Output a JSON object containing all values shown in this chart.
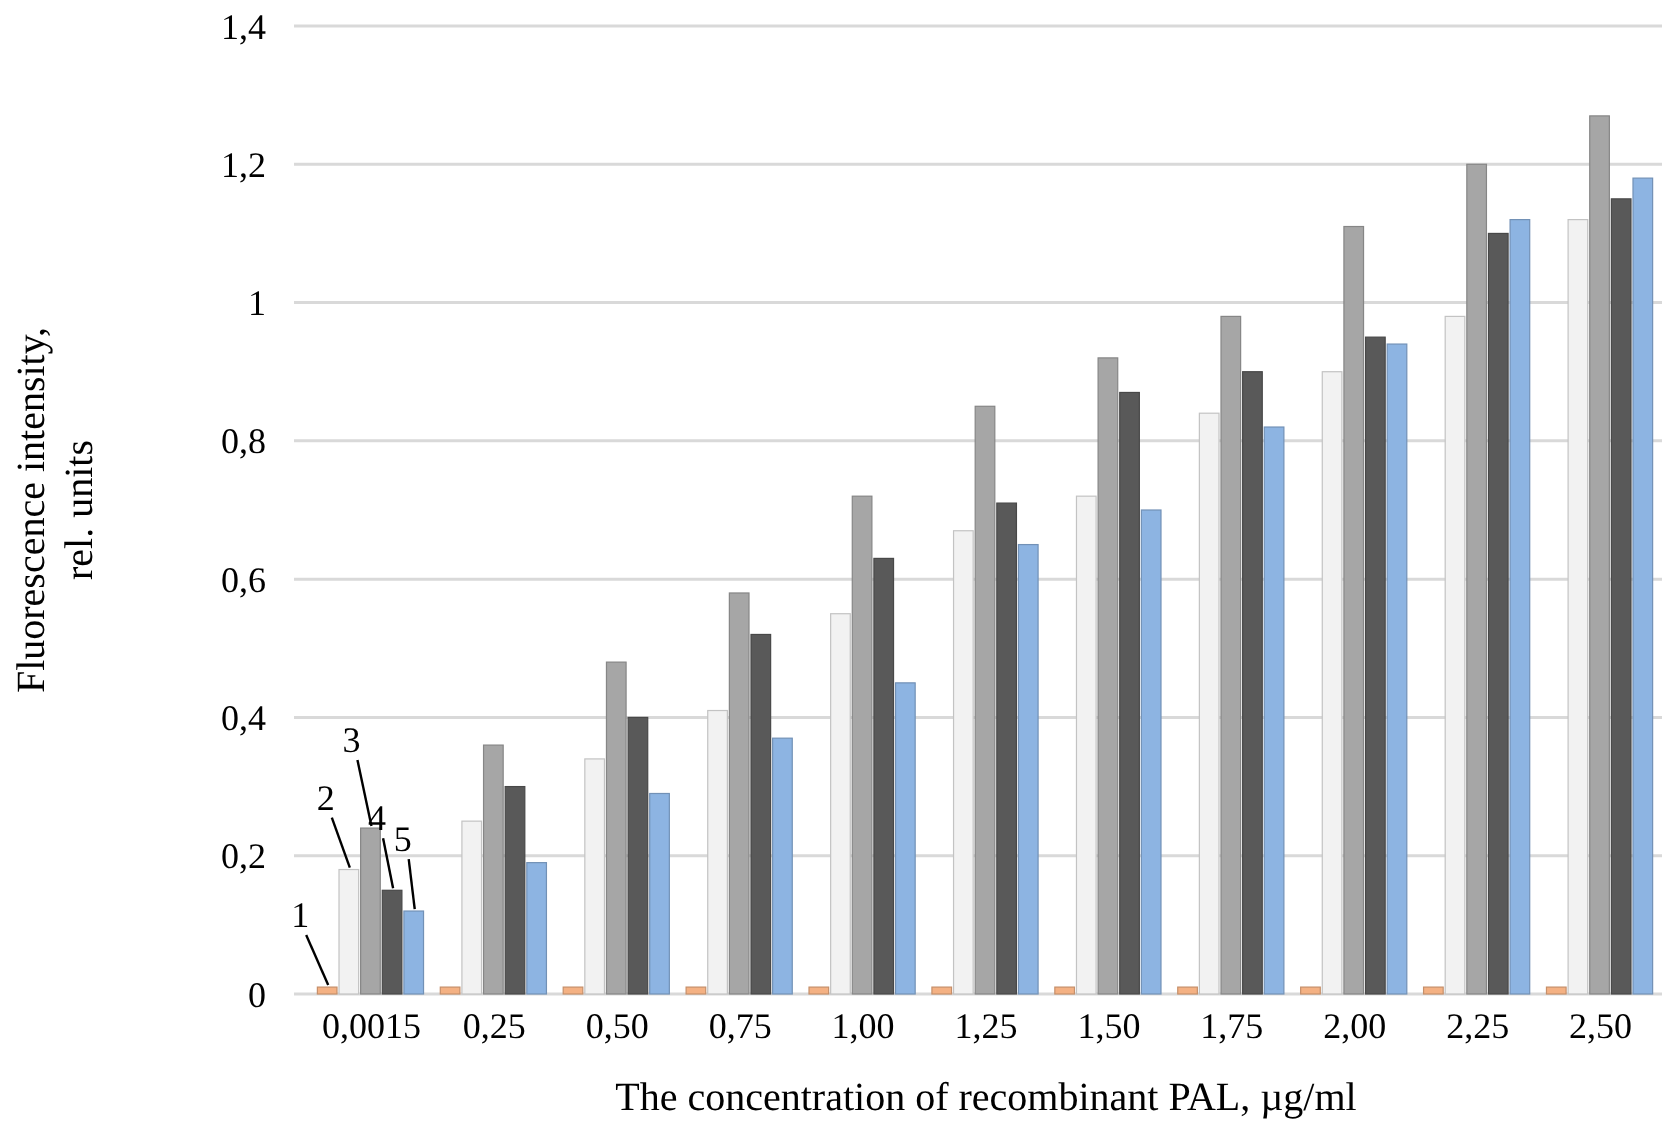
{
  "chart_data": {
    "type": "bar",
    "xlabel": "The concentration of recombinant PAL, µg/ml",
    "ylabel": "Fluorescence intensity, rel. units",
    "categories": [
      "0,0015",
      "0,25",
      "0,50",
      "0,75",
      "1,00",
      "1,25",
      "1,50",
      "1,75",
      "2,00",
      "2,25",
      "2,50"
    ],
    "series": [
      {
        "name": "1",
        "color": "#f4b183",
        "values": [
          0.01,
          0.01,
          0.01,
          0.01,
          0.01,
          0.01,
          0.01,
          0.01,
          0.01,
          0.01,
          0.01
        ]
      },
      {
        "name": "2",
        "color": "#f2f2f2",
        "values": [
          0.18,
          0.25,
          0.34,
          0.41,
          0.55,
          0.67,
          0.72,
          0.84,
          0.9,
          0.98,
          1.12
        ]
      },
      {
        "name": "3",
        "color": "#a6a6a6",
        "values": [
          0.24,
          0.36,
          0.48,
          0.58,
          0.72,
          0.85,
          0.92,
          0.98,
          1.11,
          1.2,
          1.27
        ]
      },
      {
        "name": "4",
        "color": "#595959",
        "values": [
          0.15,
          0.3,
          0.4,
          0.52,
          0.63,
          0.71,
          0.87,
          0.9,
          0.95,
          1.1,
          1.15
        ]
      },
      {
        "name": "5",
        "color": "#8db4e2",
        "values": [
          0.12,
          0.19,
          0.29,
          0.37,
          0.45,
          0.65,
          0.7,
          0.82,
          0.94,
          1.12,
          1.18
        ]
      }
    ],
    "ylim": [
      0,
      1.4
    ],
    "yticks": [
      0,
      {
        "value": 0.2,
        "label": "0,2"
      },
      {
        "value": 0.4,
        "label": "0,4"
      },
      {
        "value": 0.6,
        "label": "0,6"
      },
      {
        "value": 0.8,
        "label": "0,8"
      },
      1,
      {
        "value": 1.2,
        "label": "1,2"
      },
      {
        "value": 1.4,
        "label": "1,4"
      }
    ],
    "grid": "y"
  }
}
